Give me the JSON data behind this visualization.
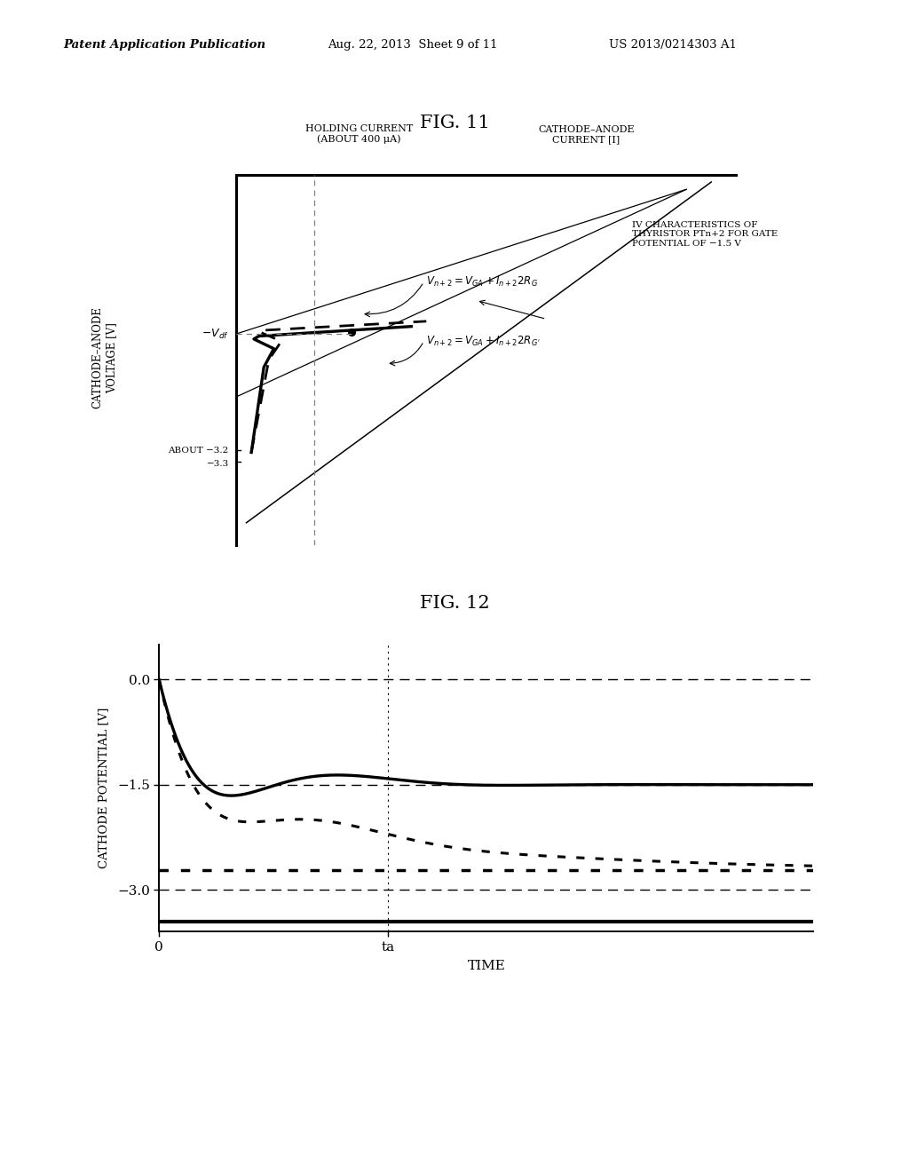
{
  "fig11_title": "FIG. 11",
  "fig12_title": "FIG. 12",
  "header_left": "Patent Application Publication",
  "header_mid": "Aug. 22, 2013  Sheet 9 of 11",
  "header_right": "US 2013/0214303 A1",
  "background_color": "#ffffff"
}
